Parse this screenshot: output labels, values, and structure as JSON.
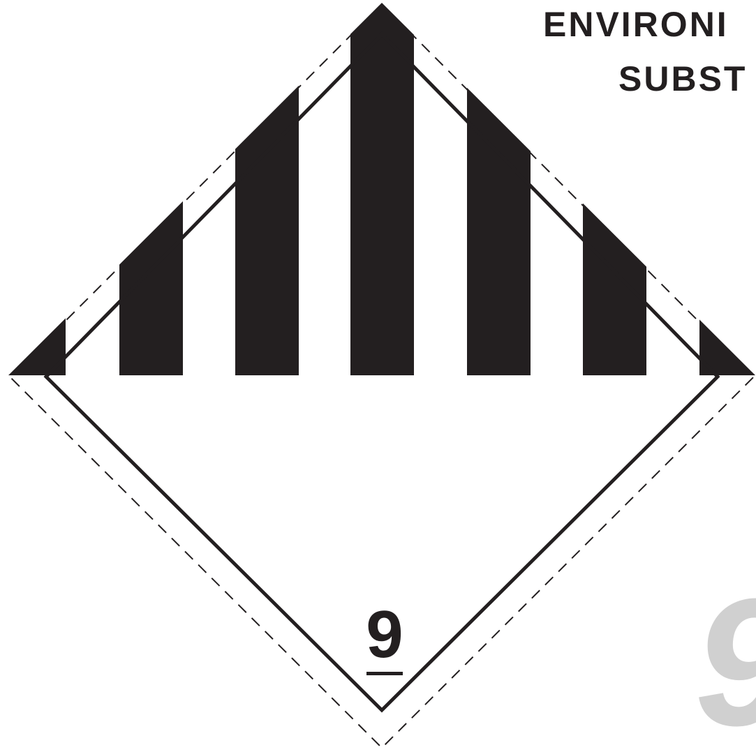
{
  "label": {
    "heading_line_1": "ENVIRONI",
    "heading_line_2": "SUBST",
    "class_number": "9",
    "watermark_glyph": "9"
  },
  "colors": {
    "ink": "#231f20",
    "background": "#ffffff",
    "watermark": "#d0d0d0"
  },
  "icons": {
    "pictogram": "class-9-miscellaneous-stripes-icon"
  }
}
